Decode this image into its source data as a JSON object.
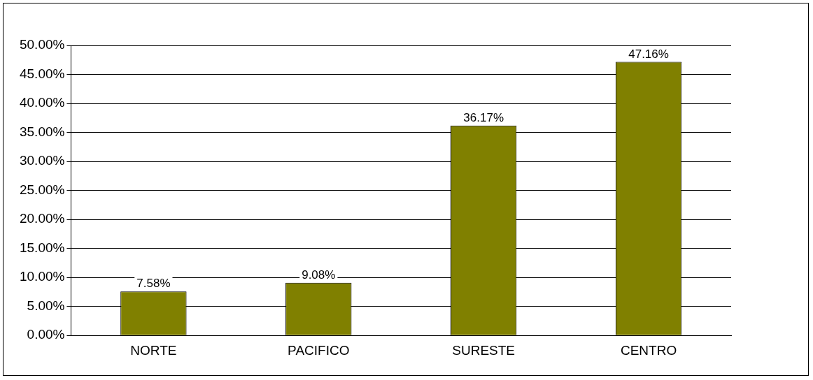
{
  "chart_data": {
    "type": "bar",
    "categories": [
      "NORTE",
      "PACIFICO",
      "SURESTE",
      "CENTRO"
    ],
    "values": [
      7.58,
      9.08,
      36.17,
      47.16
    ],
    "value_labels": [
      "7.58%",
      "9.08%",
      "36.17%",
      "47.16%"
    ],
    "color": "#808000",
    "ylim": [
      0,
      50
    ],
    "yticks": [
      {
        "value": 0,
        "label": "0.00%"
      },
      {
        "value": 5,
        "label": "5.00%"
      },
      {
        "value": 10,
        "label": "10.00%"
      },
      {
        "value": 15,
        "label": "15.00%"
      },
      {
        "value": 20,
        "label": "20.00%"
      },
      {
        "value": 25,
        "label": "25.00%"
      },
      {
        "value": 30,
        "label": "30.00%"
      },
      {
        "value": 35,
        "label": "35.00%"
      },
      {
        "value": 40,
        "label": "40.00%"
      },
      {
        "value": 45,
        "label": "45.00%"
      },
      {
        "value": 50,
        "label": "50.00%"
      }
    ],
    "grid": "y",
    "legend": false
  }
}
